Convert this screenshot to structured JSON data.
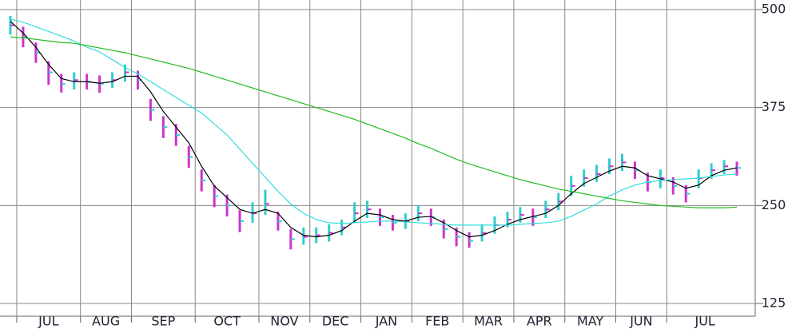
{
  "chart_data": {
    "type": "stock",
    "categories": [
      null,
      "JUL",
      null,
      null,
      null,
      null,
      "AUG",
      null,
      null,
      null,
      "SEP",
      null,
      null,
      null,
      null,
      "OCT",
      null,
      null,
      null,
      null,
      "NOV",
      null,
      null,
      null,
      "DEC",
      null,
      null,
      null,
      "JAN",
      null,
      null,
      null,
      "FEB",
      null,
      null,
      null,
      "MAR",
      null,
      null,
      null,
      "APR",
      null,
      null,
      null,
      "MAY",
      null,
      null,
      null,
      "JUN",
      null,
      null,
      null,
      "JUL",
      null,
      null,
      null,
      null,
      null
    ],
    "high": [
      492,
      478,
      458,
      434,
      418,
      420,
      418,
      416,
      420,
      430,
      422,
      386,
      364,
      354,
      326,
      296,
      276,
      264,
      244,
      254,
      270,
      242,
      220,
      222,
      222,
      226,
      232,
      254,
      256,
      246,
      238,
      240,
      250,
      246,
      232,
      222,
      216,
      226,
      236,
      242,
      248,
      246,
      256,
      266,
      288,
      296,
      302,
      310,
      316,
      306,
      292,
      296,
      286,
      276,
      296,
      304,
      308,
      306
    ],
    "low": [
      468,
      452,
      432,
      404,
      394,
      398,
      398,
      394,
      400,
      408,
      398,
      358,
      336,
      326,
      298,
      268,
      248,
      236,
      216,
      228,
      238,
      218,
      194,
      200,
      202,
      204,
      212,
      228,
      234,
      224,
      218,
      220,
      230,
      224,
      208,
      198,
      196,
      204,
      214,
      222,
      228,
      224,
      234,
      244,
      262,
      274,
      280,
      290,
      294,
      284,
      268,
      272,
      264,
      254,
      272,
      284,
      290,
      288
    ],
    "close": [
      480,
      465,
      445,
      420,
      405,
      410,
      408,
      405,
      410,
      420,
      410,
      372,
      350,
      340,
      312,
      282,
      262,
      250,
      230,
      240,
      252,
      230,
      207,
      210,
      212,
      215,
      222,
      240,
      245,
      235,
      228,
      230,
      240,
      235,
      220,
      210,
      205,
      215,
      225,
      232,
      238,
      235,
      245,
      255,
      275,
      285,
      290,
      300,
      305,
      295,
      280,
      285,
      275,
      265,
      285,
      295,
      300,
      298
    ],
    "up_color": "#33cccc",
    "down_color": "#cc33cc",
    "series": [
      {
        "color": "#000000",
        "values": [
          485,
          470,
          452,
          430,
          412,
          408,
          408,
          406,
          408,
          415,
          415,
          395,
          370,
          350,
          330,
          300,
          275,
          260,
          245,
          240,
          245,
          240,
          222,
          212,
          210,
          212,
          218,
          230,
          240,
          238,
          232,
          230,
          235,
          236,
          228,
          218,
          210,
          212,
          218,
          226,
          232,
          236,
          240,
          250,
          265,
          278,
          286,
          294,
          300,
          298,
          288,
          284,
          280,
          272,
          276,
          288,
          295,
          298
        ]
      },
      {
        "color": "#33dddd",
        "values": [
          488,
          484,
          478,
          472,
          466,
          460,
          452,
          446,
          436,
          426,
          418,
          408,
          398,
          388,
          378,
          368,
          354,
          340,
          322,
          304,
          286,
          268,
          252,
          240,
          232,
          228,
          227,
          228,
          229,
          230,
          230,
          229,
          228,
          227,
          226,
          225,
          225,
          225,
          225,
          225,
          226,
          227,
          228,
          230,
          236,
          244,
          252,
          262,
          270,
          276,
          280,
          282,
          283,
          284,
          285,
          287,
          289,
          290
        ]
      },
      {
        "color": "#22bb22",
        "values": [
          465,
          464,
          462,
          460,
          458,
          457,
          454,
          451,
          448,
          445,
          441,
          437,
          433,
          429,
          425,
          420,
          415,
          410,
          405,
          400,
          395,
          390,
          385,
          380,
          375,
          370,
          365,
          360,
          354,
          348,
          342,
          336,
          329,
          323,
          316,
          309,
          303,
          298,
          293,
          288,
          283,
          279,
          275,
          271,
          268,
          265,
          262,
          259,
          256,
          254,
          252,
          250,
          249,
          248,
          247,
          247,
          247,
          248
        ]
      }
    ],
    "ylim": [
      125,
      500
    ],
    "yticks": [
      125,
      250,
      375,
      500
    ],
    "grid": true
  }
}
